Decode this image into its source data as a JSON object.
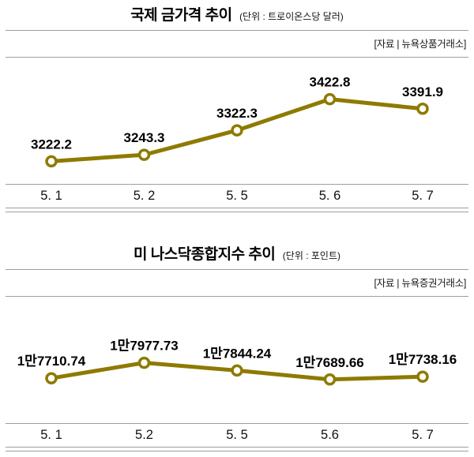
{
  "accent_color": "#8e7a00",
  "chart_data": [
    {
      "type": "line",
      "title": "국제 금가격 추이",
      "unit_note": "(단위 : 트로이온스당 달러)",
      "source": "[자료 | 뉴욕상품거래소]",
      "categories": [
        "5. 1",
        "5. 2",
        "5. 5",
        "5. 6",
        "5. 7"
      ],
      "values": [
        3222.2,
        3243.3,
        3322.3,
        3422.8,
        3391.9
      ],
      "point_labels": [
        "3222.2",
        "3243.3",
        "3322.3",
        "3422.8",
        "3391.9"
      ],
      "ylim": [
        3180,
        3460
      ],
      "xlabel": "",
      "ylabel": "달러/트로이온스",
      "line_color": "#8e7a00",
      "marker": "open-circle",
      "grid": false,
      "legend": "none"
    },
    {
      "type": "line",
      "title": "미 나스닥종합지수 추이",
      "unit_note": "(단위 : 포인트)",
      "source": "[자료 | 뉴욕증권거래소]",
      "categories": [
        "5. 1",
        "5.2",
        "5. 5",
        "5.6",
        "5. 7"
      ],
      "values": [
        17710.74,
        17977.73,
        17844.24,
        17689.66,
        17738.16
      ],
      "point_labels": [
        "1만7710.74",
        "1만7977.73",
        "1만7844.24",
        "1만7689.66",
        "1만7738.16"
      ],
      "ylim": [
        17100,
        18600
      ],
      "xlabel": "",
      "ylabel": "포인트",
      "line_color": "#8e7a00",
      "marker": "open-circle",
      "grid": false,
      "legend": "none"
    }
  ]
}
